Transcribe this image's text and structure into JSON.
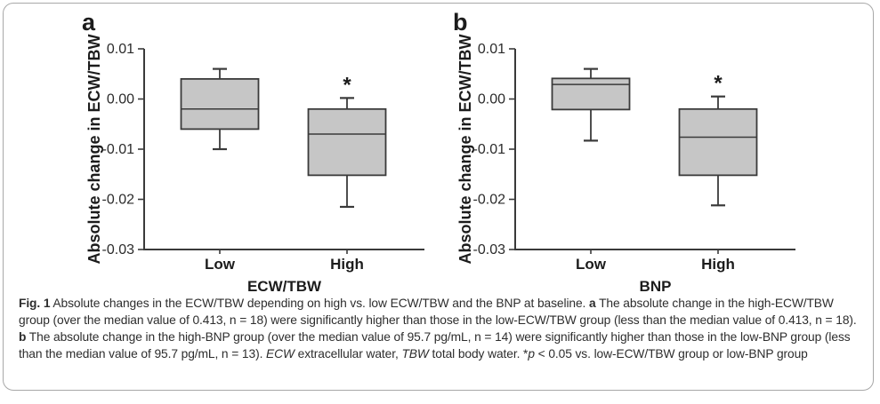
{
  "figure": {
    "styles": {
      "box_fill": "#c6c6c6",
      "line_color": "#3a3a3a",
      "frame_border_color": "#a8a8a8",
      "text_color": "#2d2d2d"
    },
    "caption_segments": [
      {
        "t": "Fig. 1",
        "s": "bold"
      },
      {
        "t": "  Absolute changes in the ECW/TBW depending on high vs. low ECW/TBW and the BNP at baseline. ",
        "s": "normal"
      },
      {
        "t": "a",
        "s": "bold"
      },
      {
        "t": " The absolute change in the high-ECW/TBW group (over the median value of 0.413, n = 18) were significantly higher than those in the low-ECW/TBW group (less than the median value of 0.413, n = 18). ",
        "s": "normal"
      },
      {
        "t": "b",
        "s": "bold"
      },
      {
        "t": " The absolute change in the high-BNP group (over the median value of 95.7 pg/mL, n = 14) were significantly higher than those in the low-BNP group (less than the median value of 95.7 pg/mL, n = 13). ",
        "s": "normal"
      },
      {
        "t": "ECW",
        "s": "italic"
      },
      {
        "t": " extracellular water, ",
        "s": "normal"
      },
      {
        "t": "TBW",
        "s": "italic"
      },
      {
        "t": " total body water. *",
        "s": "normal"
      },
      {
        "t": "p",
        "s": "italic"
      },
      {
        "t": " < 0.05 vs. low-ECW/TBW group or low-BNP group",
        "s": "normal"
      }
    ]
  },
  "chart_data": [
    {
      "type": "boxplot",
      "panel_label": "a",
      "xlabel": "ECW/TBW",
      "ylabel": "Absolute change in ECW/TBW",
      "ylim": [
        -0.03,
        0.01
      ],
      "yticks": [
        0.01,
        0.0,
        -0.01,
        -0.02,
        -0.03
      ],
      "ytick_labels": [
        "0.01",
        "0.00",
        "-0.01",
        "-0.02",
        "-0.03"
      ],
      "categories": [
        "Low",
        "High"
      ],
      "boxes": [
        {
          "category": "Low",
          "whisker_low": -0.01,
          "q1": -0.006,
          "median": -0.002,
          "q3": 0.004,
          "whisker_high": 0.006,
          "annotation": ""
        },
        {
          "category": "High",
          "whisker_low": -0.0215,
          "q1": -0.0152,
          "median": -0.007,
          "q3": -0.002,
          "whisker_high": 0.0002,
          "annotation": "*"
        }
      ]
    },
    {
      "type": "boxplot",
      "panel_label": "b",
      "xlabel": "BNP",
      "ylabel": "Absolute change in ECW/TBW",
      "ylim": [
        -0.03,
        0.01
      ],
      "yticks": [
        0.01,
        0.0,
        -0.01,
        -0.02,
        -0.03
      ],
      "ytick_labels": [
        "0.01",
        "0.00",
        "-0.01",
        "-0.02",
        "-0.03"
      ],
      "categories": [
        "Low",
        "High"
      ],
      "boxes": [
        {
          "category": "Low",
          "whisker_low": -0.0083,
          "q1": -0.0021,
          "median": 0.0029,
          "q3": 0.0041,
          "whisker_high": 0.006,
          "annotation": ""
        },
        {
          "category": "High",
          "whisker_low": -0.0212,
          "q1": -0.0152,
          "median": -0.0076,
          "q3": -0.002,
          "whisker_high": 0.0005,
          "annotation": "*"
        }
      ]
    }
  ]
}
